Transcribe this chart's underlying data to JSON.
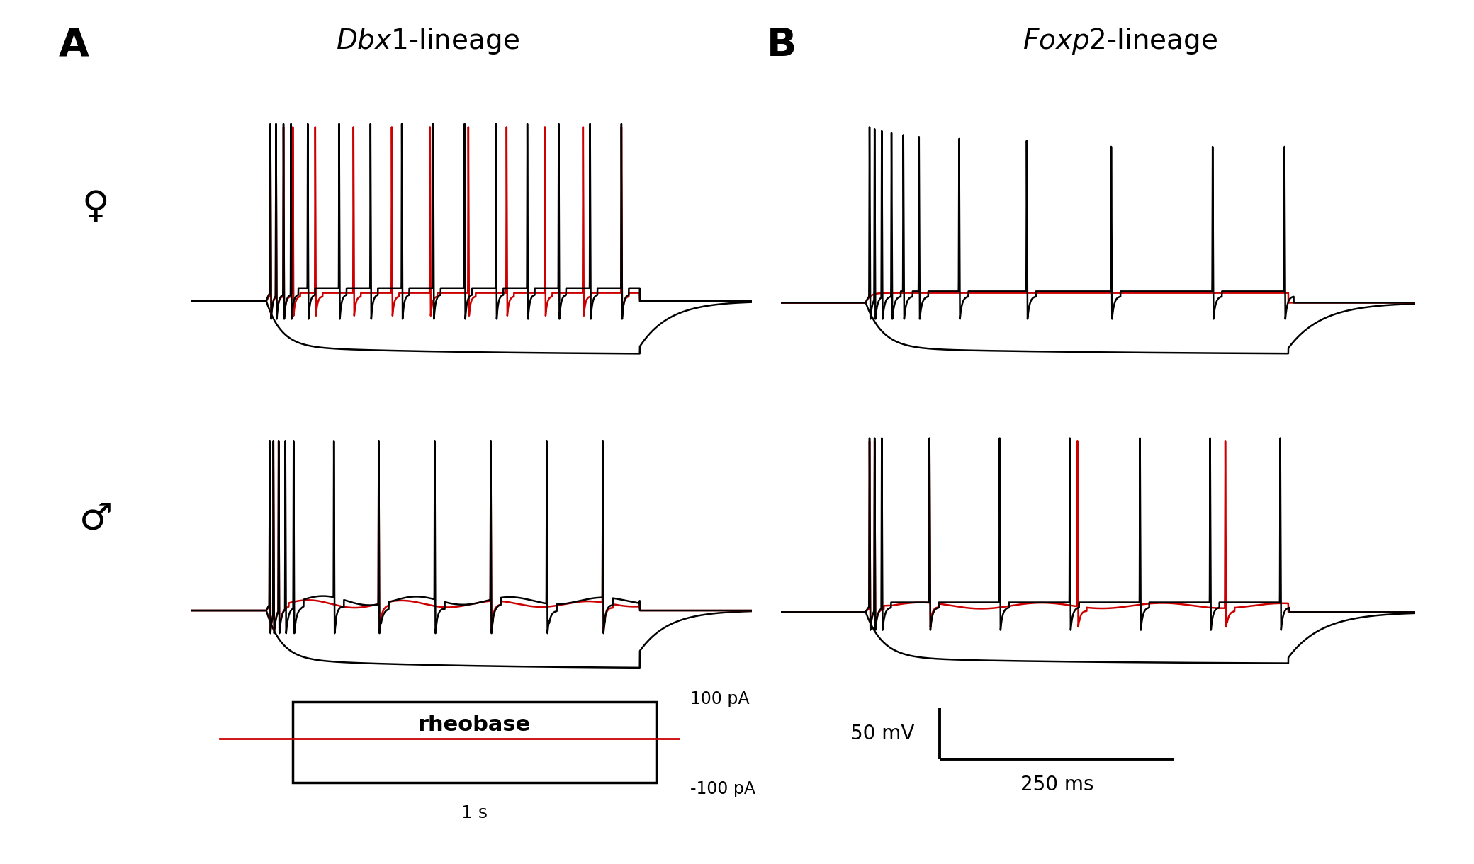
{
  "bg_color": "#ffffff",
  "panel_A_label": "A",
  "panel_B_label": "B",
  "panel_A_title_italic": "Dbx1",
  "panel_A_title_rest": "-lineage",
  "panel_B_title_italic": "Foxp2",
  "panel_B_title_rest": "-lineage",
  "female_symbol": "♀",
  "male_symbol": "♂",
  "scale_bar_voltage": "50 mV",
  "scale_bar_time": "250 ms",
  "rheobase_label": "rheobase",
  "current_100": "100 pA",
  "current_neg100": "-100 pA",
  "time_1s": "1 s",
  "black": "#000000",
  "red": "#cc0000",
  "lw_trace": 1.8
}
